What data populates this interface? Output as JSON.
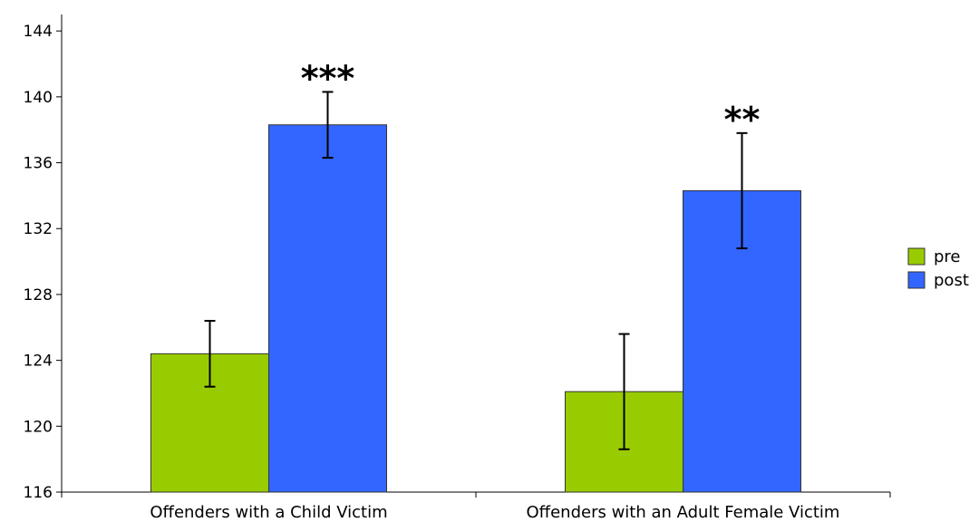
{
  "chart_data": {
    "type": "bar",
    "categories": [
      "Offenders with a Child Victim",
      "Offenders with an Adult Female Victim"
    ],
    "series": [
      {
        "name": "pre",
        "color": "#99cc00",
        "values": [
          124.4,
          122.1
        ],
        "error": [
          2.0,
          3.5
        ]
      },
      {
        "name": "post",
        "color": "#3366ff",
        "values": [
          138.3,
          134.3
        ],
        "error": [
          2.0,
          3.5
        ]
      }
    ],
    "annotations": [
      "***",
      "**"
    ],
    "ylim": [
      116,
      145
    ],
    "yticks": [
      116,
      120,
      124,
      128,
      132,
      136,
      140,
      144
    ],
    "xlabel": "",
    "ylabel": "",
    "title": "",
    "grid": false,
    "legend_position": "right"
  }
}
